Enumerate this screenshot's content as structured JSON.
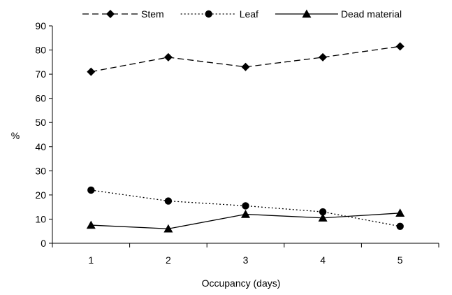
{
  "chart_data": {
    "type": "line",
    "title": "",
    "xlabel": "Occupancy (days)",
    "ylabel": "%",
    "categories": [
      "1",
      "2",
      "3",
      "4",
      "5"
    ],
    "yticks": [
      "0",
      "10",
      "20",
      "30",
      "40",
      "50",
      "60",
      "70",
      "80",
      "90"
    ],
    "ylim": [
      0,
      90
    ],
    "grid": false,
    "legend_position": "top",
    "series": [
      {
        "name": "Stem",
        "values": [
          71,
          77,
          73,
          77,
          81.5
        ],
        "marker": "diamond",
        "dash": "dashed",
        "color": "#000000"
      },
      {
        "name": "Leaf",
        "values": [
          22,
          17.5,
          15.5,
          13,
          7
        ],
        "marker": "circle",
        "dash": "dotted",
        "color": "#000000"
      },
      {
        "name": "Dead material",
        "values": [
          7.5,
          6,
          12,
          10.5,
          12.5
        ],
        "marker": "triangle",
        "dash": "solid",
        "color": "#000000"
      }
    ]
  }
}
